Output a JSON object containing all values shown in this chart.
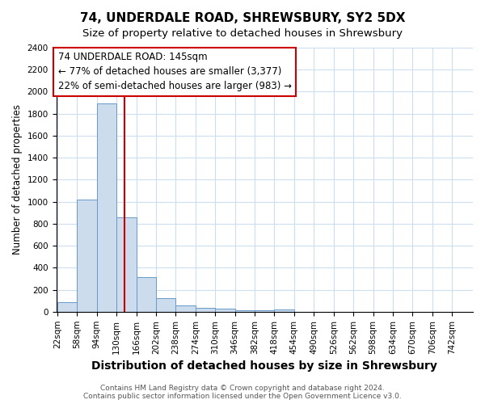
{
  "title": "74, UNDERDALE ROAD, SHREWSBURY, SY2 5DX",
  "subtitle": "Size of property relative to detached houses in Shrewsbury",
  "xlabel": "Distribution of detached houses by size in Shrewsbury",
  "ylabel": "Number of detached properties",
  "bin_labels": [
    "22sqm",
    "58sqm",
    "94sqm",
    "130sqm",
    "166sqm",
    "202sqm",
    "238sqm",
    "274sqm",
    "310sqm",
    "346sqm",
    "382sqm",
    "418sqm",
    "454sqm",
    "490sqm",
    "526sqm",
    "562sqm",
    "598sqm",
    "634sqm",
    "670sqm",
    "706sqm",
    "742sqm"
  ],
  "bin_edges": [
    22,
    58,
    94,
    130,
    166,
    202,
    238,
    274,
    310,
    346,
    382,
    418,
    454,
    490,
    526,
    562,
    598,
    634,
    670,
    706,
    742
  ],
  "bar_values": [
    90,
    1020,
    1890,
    860,
    315,
    120,
    55,
    35,
    30,
    15,
    10,
    20,
    0,
    0,
    0,
    0,
    0,
    0,
    0,
    0
  ],
  "bar_color": "#ccdcec",
  "bar_edge_color": "#6699cc",
  "property_value": 145,
  "property_label": "74 UNDERDALE ROAD: 145sqm",
  "annotation_line1": "← 77% of detached houses are smaller (3,377)",
  "annotation_line2": "22% of semi-detached houses are larger (983) →",
  "annotation_box_color": "#cc0000",
  "vline_color": "#cc0000",
  "ylim": [
    0,
    2400
  ],
  "yticks": [
    0,
    200,
    400,
    600,
    800,
    1000,
    1200,
    1400,
    1600,
    1800,
    2000,
    2200,
    2400
  ],
  "grid_color": "#ccddee",
  "footer_line1": "Contains HM Land Registry data © Crown copyright and database right 2024.",
  "footer_line2": "Contains public sector information licensed under the Open Government Licence v3.0.",
  "bg_color": "#ffffff",
  "plot_bg_color": "#ffffff",
  "title_fontsize": 11,
  "subtitle_fontsize": 9.5,
  "xlabel_fontsize": 10,
  "ylabel_fontsize": 8.5,
  "tick_fontsize": 7.5,
  "footer_fontsize": 6.5,
  "annot_fontsize": 8.5
}
